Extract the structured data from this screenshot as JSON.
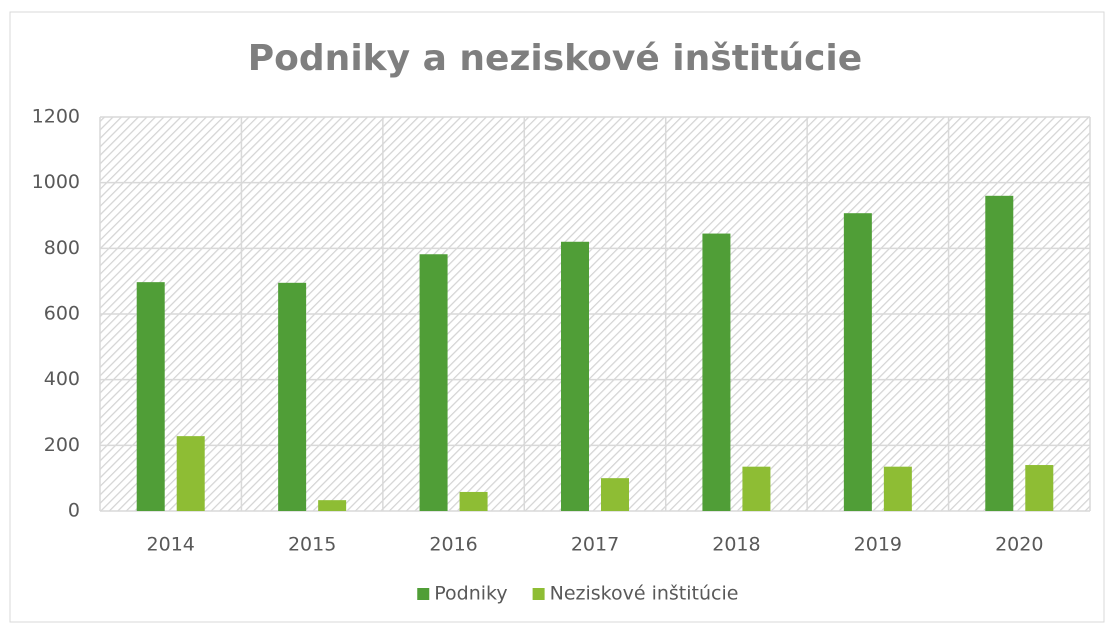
{
  "chart_data": {
    "type": "bar",
    "title": "Podniky a neziskové inštitúcie",
    "categories": [
      "2014",
      "2015",
      "2016",
      "2017",
      "2018",
      "2019",
      "2020"
    ],
    "series": [
      {
        "name": "Podniky",
        "color": "#509e37",
        "values": [
          697,
          695,
          782,
          820,
          845,
          907,
          960
        ]
      },
      {
        "name": "Neziskové inštitúcie",
        "color": "#8ebd34",
        "values": [
          228,
          33,
          58,
          100,
          135,
          135,
          140
        ]
      }
    ],
    "ylim": [
      0,
      1200
    ],
    "yticks": [
      0,
      200,
      400,
      600,
      800,
      1000,
      1200
    ],
    "grid": true,
    "legend": "bottom"
  }
}
